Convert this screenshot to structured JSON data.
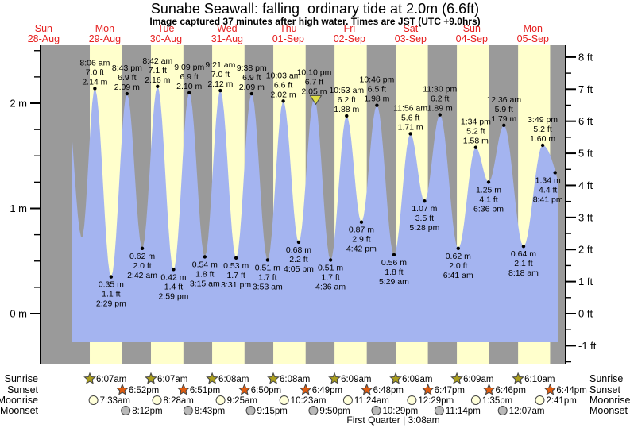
{
  "title": "Sunabe Seawall: falling  ordinary tide at 2.0m (6.6ft)",
  "subtitle": "Image captured 37 minutes after high water. Times are JST (UTC +9.0hrs)",
  "colors": {
    "night_band": "#9a9a9a",
    "day_band": "#ffffcc",
    "water": "#a4b4f0",
    "day_label": "#e62020",
    "axis": "#000000",
    "sunrise": "#ab9f1e",
    "sunset": "#e05c0f",
    "moonrise": "#ffffd9",
    "moonset": "#b9b9b9",
    "icon_stroke": "#444444",
    "marker_fill": "#dede45",
    "marker_stroke": "#444444"
  },
  "chart_data": {
    "type": "area",
    "title": "Sunabe Seawall: falling  ordinary tide at 2.0m (6.6ft)",
    "x_axis": {
      "days": [
        {
          "dow": "Sun",
          "date": "28-Aug"
        },
        {
          "dow": "Mon",
          "date": "29-Aug"
        },
        {
          "dow": "Tue",
          "date": "30-Aug"
        },
        {
          "dow": "Wed",
          "date": "31-Aug"
        },
        {
          "dow": "Thu",
          "date": "01-Sep"
        },
        {
          "dow": "Fri",
          "date": "02-Sep"
        },
        {
          "dow": "Sat",
          "date": "03-Sep"
        },
        {
          "dow": "Sun",
          "date": "04-Sep"
        },
        {
          "dow": "Mon",
          "date": "05-Sep"
        }
      ]
    },
    "y_axis_left": {
      "unit": "m",
      "major_ticks": [
        0,
        1,
        2
      ],
      "minor_step": 0.25,
      "label_format": "{v} m"
    },
    "y_axis_right": {
      "unit": "ft",
      "major_ticks": [
        -1,
        0,
        1,
        2,
        3,
        4,
        5,
        6,
        7,
        8
      ],
      "minor_step": 0.5,
      "label_format": "{v} ft"
    },
    "tide_events": [
      {
        "kind": "anchor-high",
        "t": 21.0,
        "h": 2.05,
        "labeled": false
      },
      {
        "kind": "anchor-low",
        "t": 27.0,
        "h": 0.72,
        "labeled": false
      },
      {
        "kind": "high",
        "t": 32.1,
        "h": 2.14,
        "labeled": true,
        "time": "8:06 am",
        "ft": "7.0 ft",
        "m": "2.14 m"
      },
      {
        "kind": "low",
        "t": 38.483,
        "h": 0.35,
        "labeled": true,
        "time": "2:29 pm",
        "ft": "1.1 ft",
        "m": "0.35 m"
      },
      {
        "kind": "high",
        "t": 44.717,
        "h": 2.09,
        "labeled": true,
        "time": "8:43 pm",
        "ft": "6.9 ft",
        "m": "2.09 m"
      },
      {
        "kind": "low",
        "t": 50.7,
        "h": 0.62,
        "labeled": true,
        "time": "2:42 am",
        "ft": "2.0 ft",
        "m": "0.62 m"
      },
      {
        "kind": "high",
        "t": 56.7,
        "h": 2.16,
        "labeled": true,
        "time": "8:42 am",
        "ft": "7.1 ft",
        "m": "2.16 m"
      },
      {
        "kind": "low",
        "t": 62.983,
        "h": 0.42,
        "labeled": true,
        "time": "2:59 pm",
        "ft": "1.4 ft",
        "m": "0.42 m"
      },
      {
        "kind": "high",
        "t": 69.15,
        "h": 2.1,
        "labeled": true,
        "time": "9:09 pm",
        "ft": "6.9 ft",
        "m": "2.10 m"
      },
      {
        "kind": "low",
        "t": 75.25,
        "h": 0.54,
        "labeled": true,
        "time": "3:15 am",
        "ft": "1.8 ft",
        "m": "0.54 m"
      },
      {
        "kind": "high",
        "t": 81.35,
        "h": 2.12,
        "labeled": true,
        "time": "9:21 am",
        "ft": "7.0 ft",
        "m": "2.12 m"
      },
      {
        "kind": "low",
        "t": 87.517,
        "h": 0.53,
        "labeled": true,
        "time": "3:31 pm",
        "ft": "1.7 ft",
        "m": "0.53 m"
      },
      {
        "kind": "high",
        "t": 93.633,
        "h": 2.09,
        "labeled": true,
        "time": "9:38 pm",
        "ft": "6.9 ft",
        "m": "2.09 m"
      },
      {
        "kind": "low",
        "t": 99.883,
        "h": 0.51,
        "labeled": true,
        "time": "3:53 am",
        "ft": "1.7 ft",
        "m": "0.51 m"
      },
      {
        "kind": "high",
        "t": 106.05,
        "h": 2.02,
        "labeled": true,
        "time": "10:03 am",
        "ft": "6.6 ft",
        "m": "2.02 m"
      },
      {
        "kind": "low",
        "t": 112.083,
        "h": 0.68,
        "labeled": true,
        "time": "4:05 pm",
        "ft": "2.2 ft",
        "m": "0.68 m"
      },
      {
        "kind": "high",
        "t": 118.167,
        "h": 2.05,
        "labeled": true,
        "time": "10:10 pm",
        "ft": "6.7 ft",
        "m": "2.05 m",
        "current_marker": true
      },
      {
        "kind": "low",
        "t": 124.6,
        "h": 0.51,
        "labeled": true,
        "time": "4:36 am",
        "ft": "1.7 ft",
        "m": "0.51 m"
      },
      {
        "kind": "high",
        "t": 130.883,
        "h": 1.88,
        "labeled": true,
        "time": "10:53 am",
        "ft": "6.2 ft",
        "m": "1.88 m"
      },
      {
        "kind": "low",
        "t": 136.7,
        "h": 0.87,
        "labeled": true,
        "time": "4:42 pm",
        "ft": "2.9 ft",
        "m": "0.87 m"
      },
      {
        "kind": "high",
        "t": 142.767,
        "h": 1.98,
        "labeled": true,
        "time": "10:46 pm",
        "ft": "6.5 ft",
        "m": "1.98 m"
      },
      {
        "kind": "low",
        "t": 149.483,
        "h": 0.56,
        "labeled": true,
        "time": "5:29 am",
        "ft": "1.8 ft",
        "m": "0.56 m"
      },
      {
        "kind": "high",
        "t": 155.933,
        "h": 1.71,
        "labeled": true,
        "time": "11:56 am",
        "ft": "5.6 ft",
        "m": "1.71 m"
      },
      {
        "kind": "low",
        "t": 161.467,
        "h": 1.07,
        "labeled": true,
        "time": "5:28 pm",
        "ft": "3.5 ft",
        "m": "1.07 m"
      },
      {
        "kind": "high",
        "t": 167.5,
        "h": 1.89,
        "labeled": true,
        "time": "11:30 pm",
        "ft": "6.2 ft",
        "m": "1.89 m"
      },
      {
        "kind": "low",
        "t": 174.683,
        "h": 0.62,
        "labeled": true,
        "time": "6:41 am",
        "ft": "2.0 ft",
        "m": "0.62 m"
      },
      {
        "kind": "high",
        "t": 181.567,
        "h": 1.58,
        "labeled": true,
        "time": "1:34 pm",
        "ft": "5.2 ft",
        "m": "1.58 m"
      },
      {
        "kind": "low",
        "t": 186.6,
        "h": 1.25,
        "labeled": true,
        "time": "6:36 pm",
        "ft": "4.1 ft",
        "m": "1.25 m"
      },
      {
        "kind": "high",
        "t": 192.6,
        "h": 1.79,
        "labeled": true,
        "time": "12:36 am",
        "ft": "5.9 ft",
        "m": "1.79 m"
      },
      {
        "kind": "low",
        "t": 200.3,
        "h": 0.64,
        "labeled": true,
        "time": "8:18 am",
        "ft": "2.1 ft",
        "m": "0.64 m"
      },
      {
        "kind": "high",
        "t": 207.817,
        "h": 1.6,
        "labeled": true,
        "time": "3:49 pm",
        "ft": "5.2 ft",
        "m": "1.60 m"
      },
      {
        "kind": "end",
        "t": 212.683,
        "h": 1.34,
        "labeled": true,
        "time": "8:41 pm",
        "ft": "4.4 ft",
        "m": "1.34 m"
      },
      {
        "kind": "anchor-low",
        "t": 221.0,
        "h": 0.8,
        "labeled": false
      }
    ],
    "current_marker": {
      "note": "37 minutes after high water",
      "at_event_time": "10:10 pm"
    },
    "sun_moon": {
      "rows": [
        {
          "label": "Sunrise",
          "icon": "star",
          "color_key": "sunrise",
          "entries": [
            {
              "time": "6:07am",
              "t": 30.117
            },
            {
              "time": "6:07am",
              "t": 54.117
            },
            {
              "time": "6:08am",
              "t": 78.133
            },
            {
              "time": "6:08am",
              "t": 102.133
            },
            {
              "time": "6:09am",
              "t": 126.15
            },
            {
              "time": "6:09am",
              "t": 150.15
            },
            {
              "time": "6:09am",
              "t": 174.15
            },
            {
              "time": "6:10am",
              "t": 198.167
            }
          ]
        },
        {
          "label": "Sunset",
          "icon": "star",
          "color_key": "sunset",
          "entries": [
            {
              "time": "6:52pm",
              "t": 42.867
            },
            {
              "time": "6:51pm",
              "t": 66.85
            },
            {
              "time": "6:50pm",
              "t": 90.833
            },
            {
              "time": "6:49pm",
              "t": 114.817
            },
            {
              "time": "6:48pm",
              "t": 138.8
            },
            {
              "time": "6:47pm",
              "t": 162.783
            },
            {
              "time": "6:46pm",
              "t": 186.767
            },
            {
              "time": "6:44pm",
              "t": 210.733
            }
          ]
        },
        {
          "label": "Moonrise",
          "icon": "circle",
          "color_key": "moonrise",
          "entries": [
            {
              "time": "7:33am",
              "t": 31.55
            },
            {
              "time": "8:28am",
              "t": 56.467
            },
            {
              "time": "9:25am",
              "t": 81.417
            },
            {
              "time": "10:23am",
              "t": 106.383
            },
            {
              "time": "11:24am",
              "t": 131.4
            },
            {
              "time": "12:29pm",
              "t": 156.483
            },
            {
              "time": "1:35pm",
              "t": 181.583
            },
            {
              "time": "2:41pm",
              "t": 206.683
            }
          ]
        },
        {
          "label": "Moonset",
          "icon": "circle",
          "color_key": "moonset",
          "entries": [
            {
              "time": "8:12pm",
              "t": 44.2
            },
            {
              "time": "8:43pm",
              "t": 68.717
            },
            {
              "time": "9:15pm",
              "t": 93.25
            },
            {
              "time": "9:50pm",
              "t": 117.833
            },
            {
              "time": "10:29pm",
              "t": 142.483
            },
            {
              "time": "11:14pm",
              "t": 167.233
            },
            {
              "time": "12:07am",
              "t": 192.117
            }
          ]
        }
      ]
    },
    "footer_note": "First Quarter | 3:08am"
  }
}
